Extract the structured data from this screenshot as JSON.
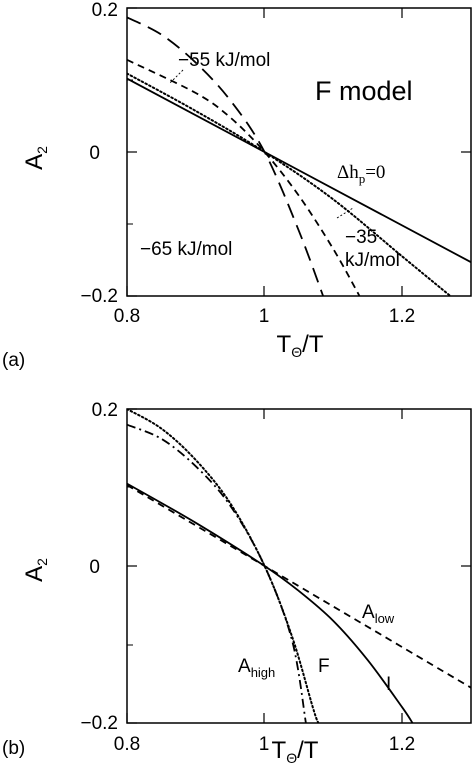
{
  "chart_data": [
    {
      "panel_label": "(a)",
      "type": "line",
      "title": "",
      "xlabel": "T_Θ/T",
      "ylabel": "A_2",
      "xlim": [
        0.8,
        1.3
      ],
      "ylim": [
        -0.2,
        0.2
      ],
      "xticks": [
        "0.8",
        "1",
        "1.2"
      ],
      "yticks": [
        "0.2",
        "0",
        "−0.2"
      ],
      "grid": false,
      "legend": "none",
      "series": [
        {
          "style": "solid",
          "x": [
            0.8,
            1.0,
            1.3
          ],
          "y": [
            0.102,
            0.0,
            -0.153
          ]
        },
        {
          "style": "dotted",
          "x": [
            0.8,
            0.9,
            1.0,
            1.1,
            1.2,
            1.27
          ],
          "y": [
            0.109,
            0.057,
            0.0,
            -0.066,
            -0.145,
            -0.2
          ]
        },
        {
          "style": "dashed",
          "x": [
            0.8,
            0.9,
            0.95,
            1.0,
            1.05,
            1.1,
            1.138
          ],
          "y": [
            0.128,
            0.082,
            0.048,
            0.0,
            -0.061,
            -0.135,
            -0.2
          ]
        },
        {
          "style": "longdash",
          "x": [
            0.8,
            0.85,
            0.9,
            0.95,
            1.0,
            1.05,
            1.085
          ],
          "y": [
            0.187,
            0.163,
            0.124,
            0.072,
            0.0,
            -0.11,
            -0.2
          ]
        }
      ],
      "annotations": {
        "model": "F model",
        "m55": "−55 kJ/mol",
        "m65": "−65 kJ/mol",
        "dh_delta": "Δh",
        "dh_sub": "p",
        "dh_eq": "=0",
        "m35a": "−35",
        "m35b": "kJ/mol"
      }
    },
    {
      "panel_label": "(b)",
      "type": "line",
      "title": "",
      "xlabel": "T_Θ/T",
      "ylabel": "A_2",
      "xlim": [
        0.8,
        1.3
      ],
      "ylim": [
        -0.2,
        0.2
      ],
      "xticks": [
        "0.8",
        "1",
        "1.2"
      ],
      "yticks": [
        "0.2",
        "0",
        "−0.2"
      ],
      "grid": false,
      "legend": "none",
      "series": [
        {
          "name": "A_low",
          "style": "dashed",
          "x": [
            0.8,
            1.0,
            1.3
          ],
          "y": [
            0.103,
            0.0,
            -0.155
          ]
        },
        {
          "name": "I",
          "style": "solid",
          "x": [
            0.8,
            0.9,
            1.0,
            1.05,
            1.1,
            1.15,
            1.2,
            1.215
          ],
          "y": [
            0.105,
            0.055,
            0.0,
            -0.032,
            -0.07,
            -0.12,
            -0.18,
            -0.2
          ]
        },
        {
          "name": "F",
          "style": "dotted",
          "x": [
            0.8,
            0.85,
            0.9,
            0.95,
            1.0,
            1.04,
            1.07,
            1.078
          ],
          "y": [
            0.2,
            0.175,
            0.135,
            0.08,
            0.0,
            -0.09,
            -0.18,
            -0.2
          ]
        },
        {
          "name": "A_high",
          "style": "dashdot",
          "x": [
            0.8,
            0.85,
            0.9,
            0.95,
            1.0,
            1.04,
            1.06
          ],
          "y": [
            0.18,
            0.162,
            0.127,
            0.077,
            0.0,
            -0.095,
            -0.2
          ]
        }
      ],
      "labels": {
        "alow_main": "A",
        "alow_sub": "low",
        "ahigh_main": "A",
        "ahigh_sub": "high",
        "f": "F",
        "i": "I"
      }
    }
  ],
  "axis_text": {
    "xlabel_main": "T",
    "xlabel_sub": "Θ",
    "xlabel_rest": "/T",
    "ylabel_main": "A",
    "ylabel_sub": "2"
  }
}
